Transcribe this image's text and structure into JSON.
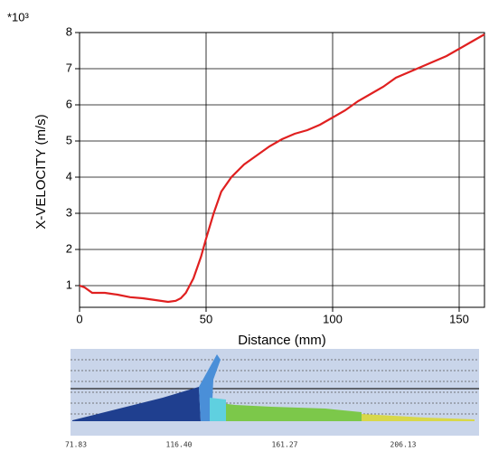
{
  "chart_data": {
    "type": "line",
    "multiplier": "*10³",
    "x_label": "Distance (mm)",
    "y_label": "X-VELOCITY  (m/s)",
    "x": [
      0,
      2,
      5,
      10,
      15,
      20,
      25,
      30,
      35,
      38,
      40,
      42,
      45,
      48,
      50,
      53,
      56,
      60,
      65,
      70,
      75,
      80,
      85,
      90,
      95,
      100,
      105,
      110,
      115,
      120,
      125,
      130,
      135,
      140,
      145,
      150,
      155,
      160
    ],
    "values": [
      1.0,
      0.95,
      0.8,
      0.8,
      0.75,
      0.68,
      0.65,
      0.6,
      0.55,
      0.58,
      0.65,
      0.8,
      1.2,
      1.8,
      2.3,
      3.0,
      3.6,
      4.0,
      4.35,
      4.6,
      4.85,
      5.05,
      5.2,
      5.3,
      5.45,
      5.65,
      5.85,
      6.1,
      6.3,
      6.5,
      6.75,
      6.9,
      7.05,
      7.2,
      7.35,
      7.55,
      7.75,
      7.95
    ],
    "color": "#e02020",
    "xlim": [
      0,
      160
    ],
    "xticks": [
      0,
      50,
      100,
      150
    ],
    "ylim": [
      0.4,
      8
    ],
    "yticks": [
      1,
      2,
      3,
      4,
      5,
      6,
      7,
      8
    ],
    "grid": true
  },
  "strip_labels": [
    "71.83",
    "116.40",
    "161.27",
    "206.13"
  ]
}
